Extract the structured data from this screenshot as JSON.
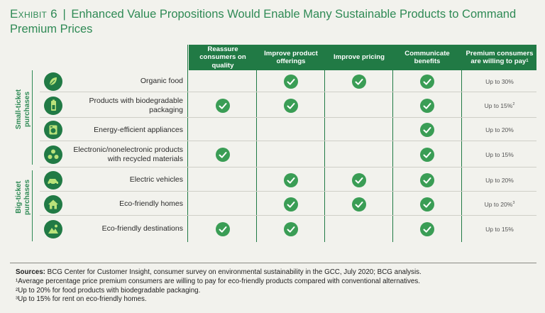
{
  "title": {
    "exhibit": "Exhibit 6",
    "separator": "|",
    "text": "Enhanced Value Propositions Would Enable Many Sustainable Products to Command Premium Prices"
  },
  "columns": [
    {
      "label": "Reassure consumers on quality"
    },
    {
      "label": "Improve product offerings"
    },
    {
      "label": "Improve pricing"
    },
    {
      "label": "Communicate benefits"
    },
    {
      "label": "Premium consumers are willing to pay",
      "sup": "1"
    }
  ],
  "groups": [
    {
      "label": "Small-ticket purchases"
    },
    {
      "label": "Big-ticket purchases"
    }
  ],
  "chart_data": {
    "type": "table",
    "rows": [
      {
        "label": "Organic food",
        "icon": "leaf-icon",
        "group": 0,
        "checks": [
          false,
          true,
          true,
          true
        ],
        "premium": "Up to 30%",
        "sup": ""
      },
      {
        "label": "Products with biodegradable packaging",
        "icon": "battery-icon",
        "group": 0,
        "checks": [
          true,
          true,
          false,
          true
        ],
        "premium": "Up to 15%",
        "sup": "2"
      },
      {
        "label": "Energy-efficient appliances",
        "icon": "washing-machine-icon",
        "group": 0,
        "checks": [
          false,
          false,
          false,
          true
        ],
        "premium": "Up to 20%",
        "sup": ""
      },
      {
        "label": "Electronic/nonelectronic products with recycled materials",
        "icon": "recycle-icon",
        "group": 0,
        "checks": [
          true,
          false,
          false,
          true
        ],
        "premium": "Up to 15%",
        "sup": ""
      },
      {
        "label": "Electric vehicles",
        "icon": "electric-car-icon",
        "group": 1,
        "checks": [
          false,
          true,
          true,
          true
        ],
        "premium": "Up to 20%",
        "sup": ""
      },
      {
        "label": "Eco-friendly homes",
        "icon": "house-icon",
        "group": 1,
        "checks": [
          false,
          true,
          true,
          true
        ],
        "premium": "Up to 20%",
        "sup": "3"
      },
      {
        "label": "Eco-friendly destinations",
        "icon": "destination-icon",
        "group": 1,
        "checks": [
          true,
          true,
          false,
          true
        ],
        "premium": "Up to 15%",
        "sup": ""
      }
    ]
  },
  "footnotes": {
    "sources_label": "Sources:",
    "sources_text": "BCG Center for Customer Insight, consumer survey on environmental sustainability in the GCC, July 2020; BCG analysis.",
    "notes": [
      "¹Average percentage price premium consumers are willing to pay for eco-friendly products compared with conventional alternatives.",
      "²Up to 20% for food products with biodegradable packaging.",
      "³Up to 15% for rent on eco-friendly homes."
    ]
  },
  "colors": {
    "accent": "#217a45",
    "check": "#3a9d55",
    "title": "#2f8a55",
    "background": "#f2f2ed"
  }
}
